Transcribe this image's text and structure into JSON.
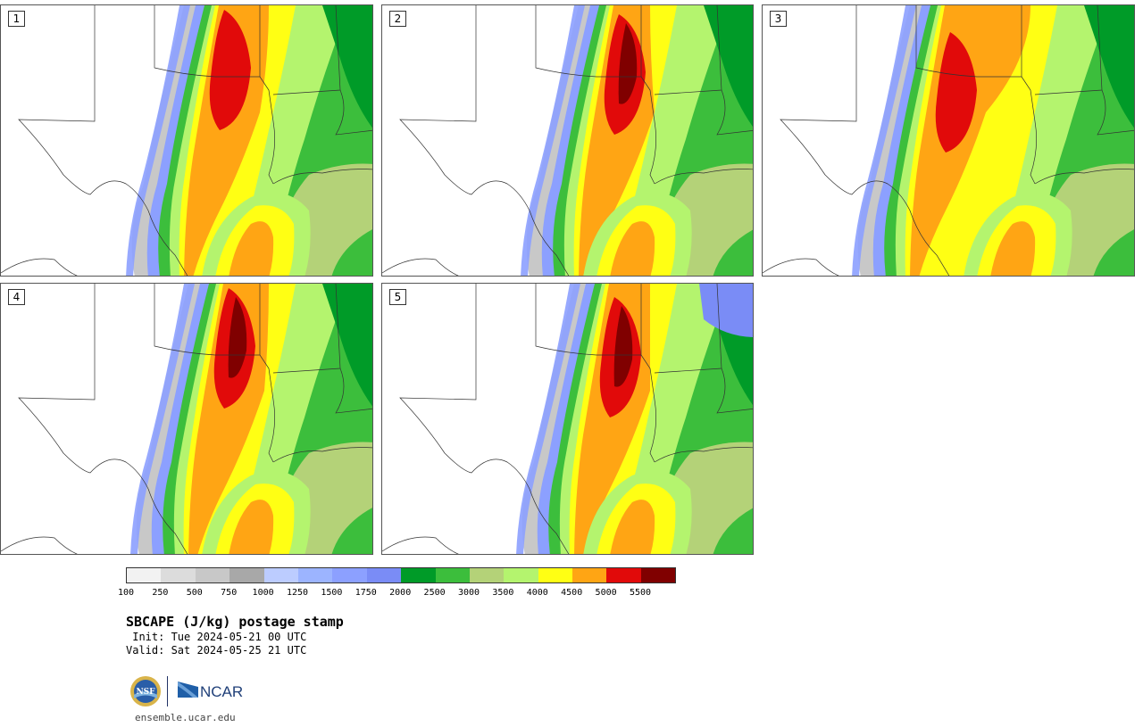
{
  "panels": [
    {
      "label": "1",
      "variant": 0
    },
    {
      "label": "2",
      "variant": 1
    },
    {
      "label": "3",
      "variant": 2
    },
    {
      "label": "4",
      "variant": 3
    },
    {
      "label": "5",
      "variant": 4
    }
  ],
  "colorbar": {
    "ticks": [
      "100",
      "250",
      "500",
      "750",
      "1000",
      "1250",
      "1500",
      "1750",
      "2000",
      "2500",
      "3000",
      "3500",
      "4000",
      "4500",
      "5000",
      "5500"
    ],
    "colors": [
      "#f2f2f2",
      "#dcdcdc",
      "#c8c8c8",
      "#a8a8a8",
      "#bcccff",
      "#9cb4ff",
      "#8ca0ff",
      "#7a8cf6",
      "#009b28",
      "#3cbe3c",
      "#b4d278",
      "#b4f46e",
      "#ffff14",
      "#ffa514",
      "#e10a0a",
      "#800000"
    ]
  },
  "title": "SBCAPE (J/kg) postage stamp",
  "init": " Init: Tue 2024-05-21 00 UTC",
  "valid": "Valid: Sat 2024-05-25 21 UTC",
  "logos": {
    "nsf": "NSF",
    "ncar": "NCAR"
  },
  "site": "ensemble.ucar.edu"
}
